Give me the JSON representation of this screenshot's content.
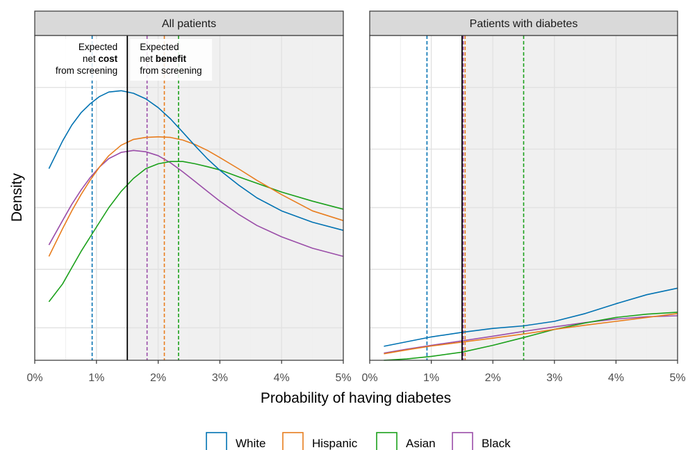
{
  "chart_data": {
    "type": "line",
    "xlabel": "Probability of having diabetes",
    "ylabel": "Density",
    "xlim": [
      0,
      5
    ],
    "x_ticks": [
      "0%",
      "1%",
      "2%",
      "3%",
      "4%",
      "5%"
    ],
    "y_tick_labels": "none",
    "grid": true,
    "legend_position": "bottom",
    "threshold": 1.5,
    "shaded_region": "above threshold",
    "annotations": {
      "cost": {
        "line1": "Expected",
        "line2_pre": "net ",
        "line2_bold": "cost",
        "line3": "from screening"
      },
      "benefit": {
        "line1": "Expected",
        "line2_pre": "net ",
        "line2_bold": "benefit",
        "line3": "from screening"
      }
    },
    "series": [
      {
        "name": "White",
        "color": "#0072B2"
      },
      {
        "name": "Hispanic",
        "color": "#E87D1E"
      },
      {
        "name": "Asian",
        "color": "#1AA01A"
      },
      {
        "name": "Black",
        "color": "#9A4DA8"
      }
    ],
    "panels": [
      {
        "title": "All patients",
        "ylim": [
          0,
          1
        ],
        "x": [
          0.23,
          0.45,
          0.6,
          0.75,
          0.9,
          1.05,
          1.2,
          1.4,
          1.6,
          1.8,
          2.0,
          2.2,
          2.4,
          2.6,
          2.8,
          3.0,
          3.3,
          3.6,
          4.0,
          4.5,
          5.0
        ],
        "curves": [
          [
            0.59,
            0.675,
            0.724,
            0.762,
            0.79,
            0.812,
            0.826,
            0.83,
            0.822,
            0.805,
            0.778,
            0.743,
            0.702,
            0.66,
            0.62,
            0.585,
            0.54,
            0.5,
            0.46,
            0.425,
            0.4
          ],
          [
            0.32,
            0.405,
            0.46,
            0.51,
            0.555,
            0.595,
            0.63,
            0.662,
            0.68,
            0.686,
            0.688,
            0.686,
            0.678,
            0.664,
            0.646,
            0.624,
            0.59,
            0.554,
            0.51,
            0.46,
            0.43
          ],
          [
            0.18,
            0.235,
            0.285,
            0.335,
            0.38,
            0.425,
            0.47,
            0.52,
            0.56,
            0.59,
            0.605,
            0.612,
            0.612,
            0.605,
            0.596,
            0.586,
            0.565,
            0.545,
            0.518,
            0.49,
            0.465
          ],
          [
            0.355,
            0.43,
            0.48,
            0.524,
            0.563,
            0.595,
            0.621,
            0.64,
            0.646,
            0.642,
            0.63,
            0.608,
            0.58,
            0.55,
            0.52,
            0.49,
            0.45,
            0.415,
            0.38,
            0.345,
            0.32
          ]
        ],
        "vlines": [
          0.93,
          2.1,
          2.33,
          1.82
        ]
      },
      {
        "title": "Patients with diabetes",
        "ylim": [
          0,
          1
        ],
        "x": [
          0.23,
          0.6,
          1.0,
          1.5,
          2.0,
          2.5,
          3.0,
          3.5,
          4.0,
          4.5,
          5.0
        ],
        "curves": [
          [
            0.043,
            0.057,
            0.072,
            0.086,
            0.098,
            0.106,
            0.12,
            0.144,
            0.174,
            0.202,
            0.222
          ],
          [
            0.02,
            0.032,
            0.044,
            0.056,
            0.068,
            0.081,
            0.095,
            0.108,
            0.12,
            0.132,
            0.144
          ],
          [
            0.0,
            0.004,
            0.012,
            0.025,
            0.046,
            0.07,
            0.095,
            0.115,
            0.132,
            0.142,
            0.148
          ],
          [
            0.022,
            0.034,
            0.046,
            0.06,
            0.074,
            0.089,
            0.103,
            0.116,
            0.127,
            0.134,
            0.137
          ]
        ],
        "vlines": [
          0.93,
          1.55,
          2.5,
          1.52
        ]
      }
    ]
  }
}
